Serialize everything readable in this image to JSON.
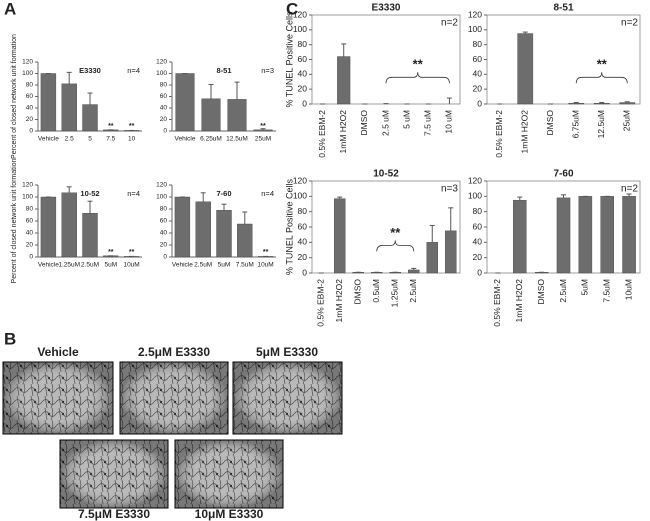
{
  "panel_labels": [
    "A",
    "B",
    "C"
  ],
  "images": [
    {
      "caption": "Vehicle"
    },
    {
      "caption": "2.5μM E3330"
    },
    {
      "caption": "5μM E3330"
    },
    {
      "caption": "7.5μM E3330"
    },
    {
      "caption": "10μM E3330"
    }
  ],
  "chart_data": [
    {
      "type": "bar",
      "title": "E3330",
      "note": "n=4",
      "ylabel": "Percent of closed network unit formation",
      "categories": [
        "Vehicle",
        "2.5",
        "5",
        "7.5",
        "10"
      ],
      "values": [
        100,
        82,
        46,
        2,
        1
      ],
      "errors": [
        0,
        20,
        20,
        0,
        0
      ],
      "color": "#6d6d6d",
      "ylim": [
        0,
        120
      ],
      "yticks": [
        0,
        20,
        40,
        60,
        80,
        100,
        120
      ],
      "annotations": [
        {
          "text": "**",
          "at": "7.5"
        },
        {
          "text": "**",
          "at": "10"
        }
      ],
      "box": false
    },
    {
      "type": "bar",
      "title": "8-51",
      "note": "n=3",
      "categories": [
        "Vehicle",
        "6.25uM",
        "12.5uM",
        "25uM"
      ],
      "values": [
        100,
        56,
        55,
        2
      ],
      "errors": [
        0,
        25,
        30,
        2
      ],
      "color": "#6d6d6d",
      "ylim": [
        0,
        120
      ],
      "yticks": [
        0,
        20,
        40,
        60,
        80,
        100,
        120
      ],
      "annotations": [
        {
          "text": "**",
          "at": "25uM"
        }
      ],
      "box": false
    },
    {
      "type": "bar",
      "title": "10-52",
      "note": "n=4",
      "ylabel": "Percent of closed network unit formation",
      "categories": [
        "Vehicle",
        "1.25uM",
        "2.5uM",
        "5uM",
        "10uM"
      ],
      "values": [
        100,
        107,
        73,
        2,
        1
      ],
      "errors": [
        0,
        10,
        20,
        0,
        0
      ],
      "color": "#6d6d6d",
      "ylim": [
        0,
        120
      ],
      "yticks": [
        0,
        20,
        40,
        60,
        80,
        100,
        120
      ],
      "annotations": [
        {
          "text": "**",
          "at": "5uM"
        },
        {
          "text": "**",
          "at": "10uM"
        }
      ],
      "box": false
    },
    {
      "type": "bar",
      "title": "7-60",
      "note": "n=4",
      "categories": [
        "Vehicle",
        "2.5uM",
        "5uM",
        "7.5uM",
        "10uM"
      ],
      "values": [
        100,
        92,
        78,
        55,
        1
      ],
      "errors": [
        0,
        15,
        10,
        20,
        0
      ],
      "color": "#6d6d6d",
      "ylim": [
        0,
        120
      ],
      "yticks": [
        0,
        20,
        40,
        60,
        80,
        100,
        120
      ],
      "annotations": [
        {
          "text": "**",
          "at": "10uM"
        }
      ],
      "box": false
    },
    {
      "type": "bar",
      "title": "E3330",
      "note": "n=2",
      "ylabel": "% TUNEL Positive Cells",
      "categories": [
        "0.5% EBM-2",
        "1mM H2O2",
        "DMSO",
        "2.5 uM",
        "5 uM",
        "7.5 uM",
        "10 uM"
      ],
      "values": [
        0,
        64,
        0,
        0,
        0,
        0,
        0
      ],
      "errors": [
        0,
        17,
        0,
        0.5,
        0,
        0,
        8
      ],
      "color": "#6d6d6d",
      "ylim": [
        0,
        120
      ],
      "yticks": [
        0,
        20,
        40,
        60,
        80,
        100,
        120
      ],
      "brackets": [
        {
          "text": "**",
          "from": "2.5 uM",
          "to": "10 uM"
        }
      ],
      "box": true
    },
    {
      "type": "bar",
      "title": "8-51",
      "note": "n=2",
      "categories": [
        "0.5% EBM-2",
        "1mM H2O2",
        "DMSO",
        "6.75uM",
        "12.5uM",
        "25uM"
      ],
      "values": [
        0,
        95,
        0,
        1,
        1,
        2
      ],
      "errors": [
        0,
        2,
        0,
        1,
        1,
        1
      ],
      "color": "#6d6d6d",
      "ylim": [
        0,
        120
      ],
      "yticks": [
        0,
        20,
        40,
        60,
        80,
        100,
        120
      ],
      "brackets": [
        {
          "text": "**",
          "from": "6.75uM",
          "to": "25uM"
        }
      ],
      "box": true
    },
    {
      "type": "bar",
      "title": "10-52",
      "note": "n=3",
      "ylabel": "% TUNEL Positive Cells",
      "categories": [
        "0.5% EBM-2",
        "1mM H2O2",
        "DMSO",
        "0.5uM",
        "1.25uM",
        "2.5uM",
        null,
        null
      ],
      "values": [
        0,
        97,
        1,
        1,
        1,
        4,
        40,
        55
      ],
      "errors": [
        0,
        2,
        0,
        0,
        0,
        2,
        22,
        30
      ],
      "color": "#6d6d6d",
      "ylim": [
        0,
        120
      ],
      "yticks": [
        0,
        20,
        40,
        60,
        80,
        100,
        120
      ],
      "brackets": [
        {
          "text": "**",
          "from": "0.5uM",
          "to": "2.5uM"
        }
      ],
      "box": true
    },
    {
      "type": "bar",
      "title": "7-60",
      "note": "n=2",
      "categories": [
        "0.5% EBM-2",
        "1mM H2O2",
        "DMSO",
        "2.5uM",
        "5uM",
        "7.5uM",
        "10uM"
      ],
      "values": [
        0,
        95,
        1,
        98,
        100,
        100,
        100
      ],
      "errors": [
        0,
        4,
        0,
        4,
        0,
        0,
        3
      ],
      "color": "#6d6d6d",
      "ylim": [
        0,
        120
      ],
      "yticks": [
        0,
        20,
        40,
        60,
        80,
        100,
        120
      ],
      "box": true
    }
  ]
}
